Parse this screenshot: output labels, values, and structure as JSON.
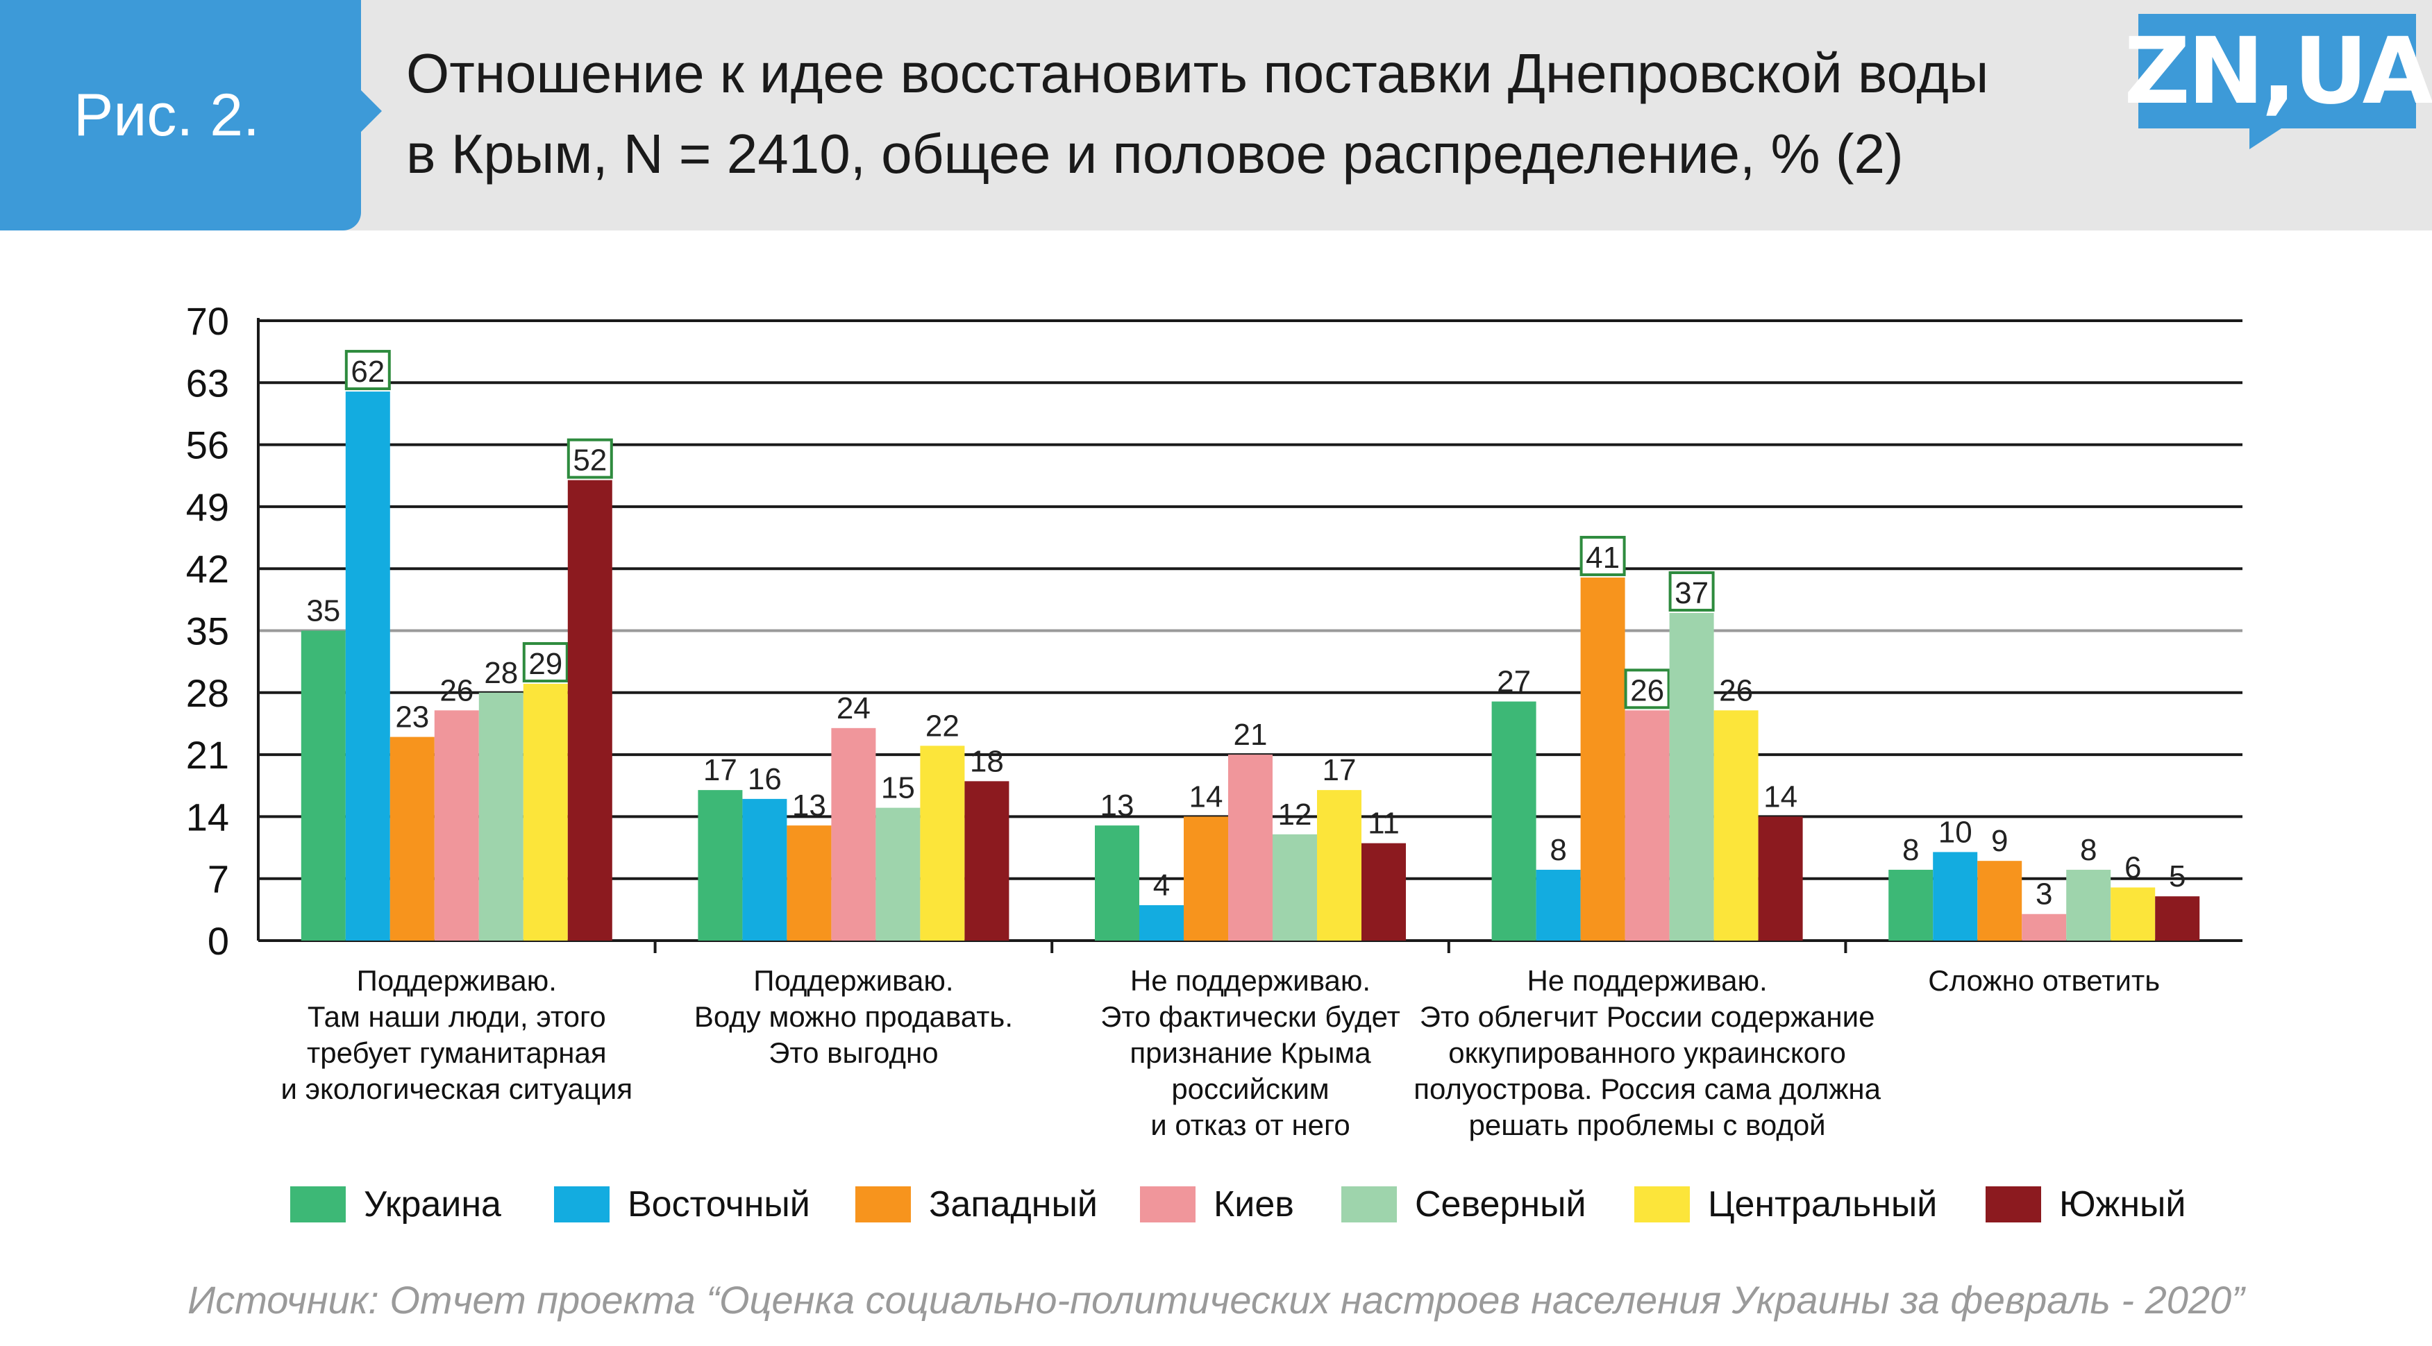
{
  "header": {
    "figure_label": "Рис. 2.",
    "title_line1": "Отношение к идее восстановить поставки Днепровской воды",
    "title_line2": "в Крым, N = 2410, общее и половое распределение, % (2)",
    "logo_text": "ZN,UA",
    "accent_color": "#3d9ad8"
  },
  "chart_data": {
    "type": "bar",
    "ylim": [
      0,
      70
    ],
    "yticks": [
      0,
      7,
      14,
      21,
      28,
      35,
      42,
      49,
      56,
      63,
      70
    ],
    "grid": true,
    "legend_position": "bottom",
    "categories": [
      [
        "Поддерживаю.",
        "Там наши люди, этого",
        "требует гуманитарная",
        "и экологическая ситуация"
      ],
      [
        "Поддерживаю.",
        "Воду можно продавать.",
        "Это выгодно"
      ],
      [
        "Не поддерживаю.",
        "Это фактически будет",
        "признание Крыма",
        "российским",
        "и отказ от него"
      ],
      [
        "Не поддерживаю.",
        "Это облегчит России содержание",
        "оккупированного украинского",
        "полуострова. Россия сама должна",
        "решать проблемы с водой"
      ],
      [
        "Сложно ответить"
      ]
    ],
    "series": [
      {
        "name": "Украина",
        "color": "#3db876",
        "values": [
          35,
          17,
          13,
          27,
          8
        ]
      },
      {
        "name": "Восточный",
        "color": "#13ace0",
        "values": [
          62,
          16,
          4,
          8,
          10
        ]
      },
      {
        "name": "Западный",
        "color": "#f7941d",
        "values": [
          23,
          13,
          14,
          41,
          9
        ]
      },
      {
        "name": "Киев",
        "color": "#f0969b",
        "values": [
          26,
          24,
          21,
          26,
          3
        ]
      },
      {
        "name": "Северный",
        "color": "#9ed4ac",
        "values": [
          28,
          15,
          12,
          37,
          8
        ]
      },
      {
        "name": "Центральный",
        "color": "#fce53a",
        "values": [
          29,
          22,
          17,
          26,
          6
        ]
      },
      {
        "name": "Южный",
        "color": "#8c1a1f",
        "values": [
          52,
          18,
          11,
          14,
          5
        ]
      }
    ],
    "highlighted": [
      [
        0,
        1
      ],
      [
        0,
        5
      ],
      [
        0,
        6
      ],
      [
        3,
        2
      ],
      [
        3,
        3
      ],
      [
        3,
        4
      ]
    ],
    "highlight_color": "#2e8b3e"
  },
  "footer": {
    "source": "Источник: Отчет проекта “Оценка социально-политических настроев населения Украины за февраль - 2020”"
  }
}
